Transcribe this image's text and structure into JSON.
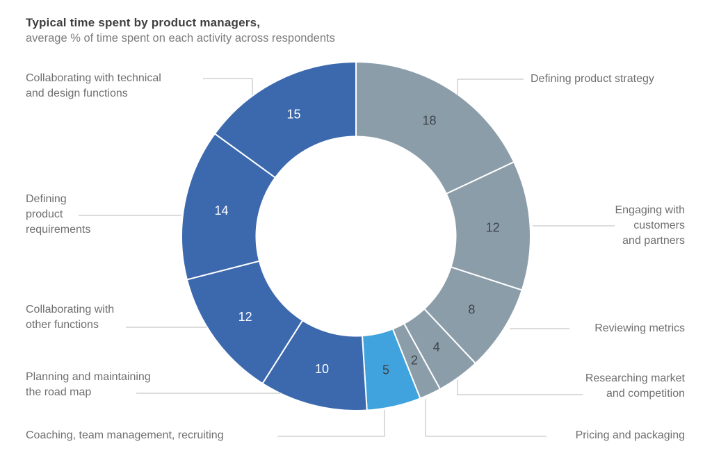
{
  "header": {
    "title": "Typical time spent by product managers,",
    "subtitle": "average % of time spent on each activity across respondents"
  },
  "colors": {
    "dark_blue": "#3c69ae",
    "gray_blue": "#8c9daa",
    "light_blue": "#41a3dd",
    "value_text_dark": "#3d444a",
    "value_text_light": "#ffffff",
    "label_text": "#6f6f6f",
    "callout_line": "#b9b9b9",
    "background": "#ffffff"
  },
  "chart_data": {
    "type": "pie",
    "variant": "donut",
    "title": "Typical time spent by product managers,",
    "subtitle": "average % of time spent on each activity across respondents",
    "unit": "% of time (average across respondents)",
    "start_angle_deg": 0,
    "direction": "clockwise",
    "total": 100,
    "segments": [
      {
        "label": "Defining product strategy",
        "label_lines": [
          "Defining product strategy"
        ],
        "value": 18,
        "color": "#8c9daa",
        "value_color": "#3d444a"
      },
      {
        "label": "Engaging with customers and partners",
        "label_lines": [
          "Engaging with",
          "customers",
          "and partners"
        ],
        "value": 12,
        "color": "#8c9daa",
        "value_color": "#3d444a"
      },
      {
        "label": "Reviewing metrics",
        "label_lines": [
          "Reviewing metrics"
        ],
        "value": 8,
        "color": "#8c9daa",
        "value_color": "#3d444a"
      },
      {
        "label": "Researching market and competition",
        "label_lines": [
          "Researching market",
          "and competition"
        ],
        "value": 4,
        "color": "#8c9daa",
        "value_color": "#3d444a"
      },
      {
        "label": "Pricing and packaging",
        "label_lines": [
          "Pricing and packaging"
        ],
        "value": 2,
        "color": "#8c9daa",
        "value_color": "#3d444a"
      },
      {
        "label": "Coaching, team management, recruiting",
        "label_lines": [
          "Coaching, team management, recruiting"
        ],
        "value": 5,
        "color": "#41a3dd",
        "value_color": "#3d444a"
      },
      {
        "label": "Planning and maintaining the road map",
        "label_lines": [
          "Planning and maintaining",
          "the road map"
        ],
        "value": 10,
        "color": "#3c69ae",
        "value_color": "#ffffff"
      },
      {
        "label": "Collaborating with other functions",
        "label_lines": [
          "Collaborating with",
          "other functions"
        ],
        "value": 12,
        "color": "#3c69ae",
        "value_color": "#ffffff"
      },
      {
        "label": "Defining product requirements",
        "label_lines": [
          "Defining",
          "product",
          "requirements"
        ],
        "value": 14,
        "color": "#3c69ae",
        "value_color": "#ffffff"
      },
      {
        "label": "Collaborating with technical and design functions",
        "label_lines": [
          "Collaborating with technical",
          "and design functions"
        ],
        "value": 15,
        "color": "#3c69ae",
        "value_color": "#ffffff"
      }
    ]
  }
}
